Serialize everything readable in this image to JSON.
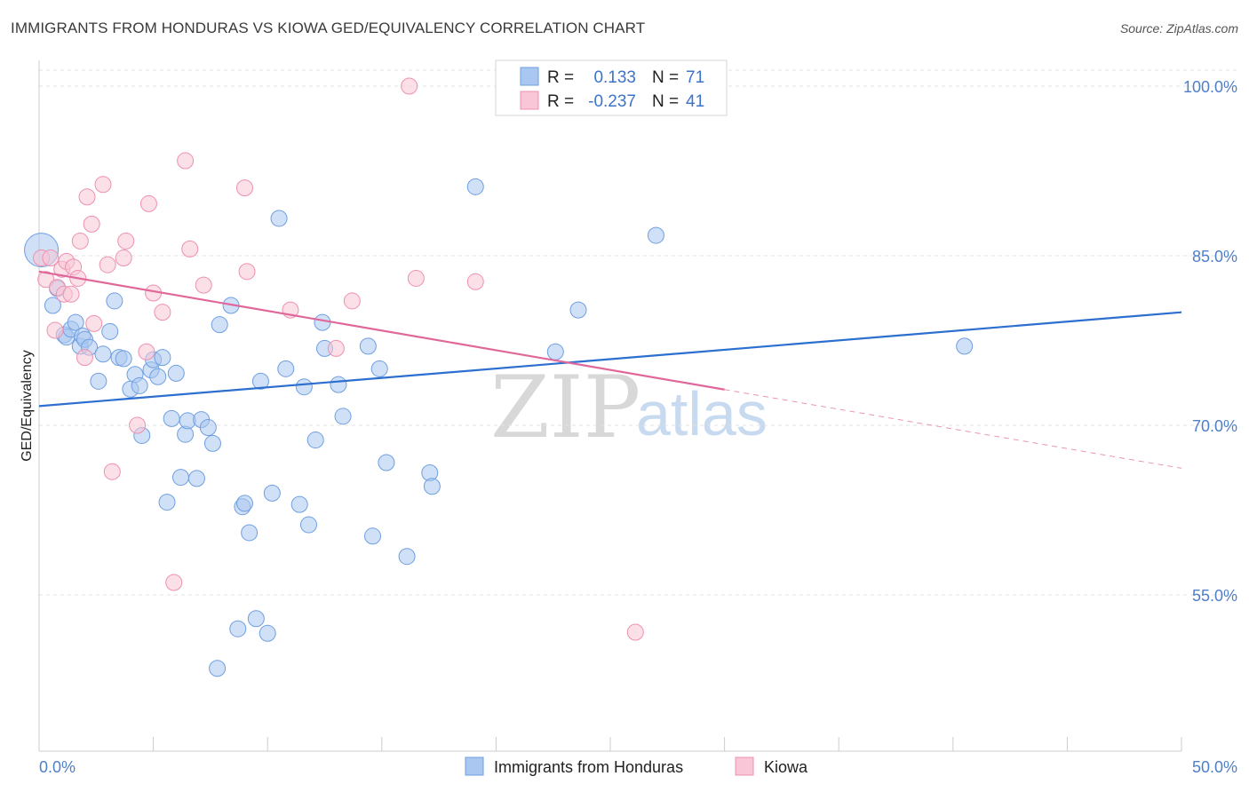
{
  "title": "IMMIGRANTS FROM HONDURAS VS KIOWA GED/EQUIVALENCY CORRELATION CHART",
  "source": "Source: ZipAtlas.com",
  "watermark": {
    "zip": "ZIP",
    "atlas": "atlas"
  },
  "legend_top": {
    "rows": [
      {
        "r_label": "R =",
        "r_value": "0.133",
        "n_label": "N =",
        "n_value": "71"
      },
      {
        "r_label": "R =",
        "r_value": "-0.237",
        "n_label": "N =",
        "n_value": "41"
      }
    ]
  },
  "chart_data": {
    "type": "scatter",
    "xlabel": "",
    "ylabel": "GED/Equivalency",
    "xlim": [
      0,
      50
    ],
    "ylim": [
      40,
      102
    ],
    "x_tick_labels": [
      "0.0%",
      "50.0%"
    ],
    "y_ticks": [
      {
        "value": 100,
        "label": "100.0%"
      },
      {
        "value": 85,
        "label": "85.0%"
      },
      {
        "value": 70,
        "label": "70.0%"
      },
      {
        "value": 55,
        "label": "55.0%"
      }
    ],
    "grid": true,
    "legend_position": "bottom",
    "series": [
      {
        "name": "Immigrants from Honduras",
        "color": "#6f9fe0",
        "fill": "#a9c7f0",
        "trend": {
          "x0": 0,
          "y0": 71.7,
          "x1": 50,
          "y1": 80.0,
          "dashed_from": null
        },
        "points": [
          [
            0.1,
            85.5
          ],
          [
            0.6,
            80.6
          ],
          [
            0.8,
            82.1
          ],
          [
            1.1,
            78.0
          ],
          [
            1.2,
            77.8
          ],
          [
            1.4,
            78.5
          ],
          [
            1.6,
            79.1
          ],
          [
            1.8,
            77.0
          ],
          [
            1.9,
            77.9
          ],
          [
            2.0,
            77.6
          ],
          [
            2.2,
            76.9
          ],
          [
            2.6,
            73.9
          ],
          [
            2.8,
            76.3
          ],
          [
            3.1,
            78.3
          ],
          [
            3.3,
            81.0
          ],
          [
            3.5,
            76.0
          ],
          [
            3.7,
            75.9
          ],
          [
            4.0,
            73.2
          ],
          [
            4.2,
            74.5
          ],
          [
            4.4,
            73.5
          ],
          [
            4.5,
            69.1
          ],
          [
            4.9,
            74.9
          ],
          [
            5.0,
            75.8
          ],
          [
            5.2,
            74.3
          ],
          [
            5.4,
            76.0
          ],
          [
            5.6,
            63.2
          ],
          [
            5.8,
            70.6
          ],
          [
            6.0,
            74.6
          ],
          [
            6.2,
            65.4
          ],
          [
            6.4,
            69.2
          ],
          [
            6.5,
            70.4
          ],
          [
            6.9,
            65.3
          ],
          [
            7.1,
            70.5
          ],
          [
            7.4,
            69.8
          ],
          [
            7.6,
            68.4
          ],
          [
            7.8,
            48.5
          ],
          [
            7.9,
            78.9
          ],
          [
            8.4,
            80.6
          ],
          [
            8.7,
            52.0
          ],
          [
            8.9,
            62.8
          ],
          [
            9.0,
            63.1
          ],
          [
            9.2,
            60.5
          ],
          [
            9.5,
            52.9
          ],
          [
            9.7,
            73.9
          ],
          [
            10.0,
            51.6
          ],
          [
            10.2,
            64.0
          ],
          [
            10.5,
            88.3
          ],
          [
            10.8,
            75.0
          ],
          [
            11.4,
            63.0
          ],
          [
            11.6,
            73.4
          ],
          [
            11.8,
            61.2
          ],
          [
            12.1,
            68.7
          ],
          [
            12.4,
            79.1
          ],
          [
            12.5,
            76.8
          ],
          [
            13.1,
            73.6
          ],
          [
            13.3,
            70.8
          ],
          [
            14.4,
            77.0
          ],
          [
            14.6,
            60.2
          ],
          [
            14.9,
            75.0
          ],
          [
            15.2,
            66.7
          ],
          [
            16.1,
            58.4
          ],
          [
            17.1,
            65.8
          ],
          [
            17.2,
            64.6
          ],
          [
            19.1,
            91.1
          ],
          [
            22.6,
            76.5
          ],
          [
            23.6,
            80.2
          ],
          [
            27.0,
            86.8
          ],
          [
            40.5,
            77.0
          ]
        ]
      },
      {
        "name": "Kiowa",
        "color": "#ee90b0",
        "fill": "#f8c6d6",
        "trend": {
          "x0": 0,
          "y0": 83.6,
          "x1": 50,
          "y1": 66.2,
          "dashed_from": 30
        },
        "points": [
          [
            0.1,
            84.8
          ],
          [
            0.3,
            82.9
          ],
          [
            0.5,
            84.8
          ],
          [
            0.7,
            78.4
          ],
          [
            0.8,
            82.2
          ],
          [
            1.0,
            83.8
          ],
          [
            1.1,
            81.6
          ],
          [
            1.2,
            84.5
          ],
          [
            1.4,
            81.6
          ],
          [
            1.5,
            84.0
          ],
          [
            1.7,
            83.0
          ],
          [
            1.8,
            86.3
          ],
          [
            2.0,
            76.0
          ],
          [
            2.1,
            90.2
          ],
          [
            2.3,
            87.8
          ],
          [
            2.4,
            79.0
          ],
          [
            2.8,
            91.3
          ],
          [
            3.0,
            84.2
          ],
          [
            3.2,
            65.9
          ],
          [
            3.7,
            84.8
          ],
          [
            3.8,
            86.3
          ],
          [
            4.3,
            70.0
          ],
          [
            4.7,
            76.5
          ],
          [
            4.8,
            89.6
          ],
          [
            5.0,
            81.7
          ],
          [
            5.4,
            80.0
          ],
          [
            5.9,
            56.1
          ],
          [
            6.4,
            93.4
          ],
          [
            6.6,
            85.6
          ],
          [
            7.2,
            82.4
          ],
          [
            9.0,
            91.0
          ],
          [
            9.1,
            83.6
          ],
          [
            11.0,
            80.2
          ],
          [
            13.0,
            76.8
          ],
          [
            13.7,
            81.0
          ],
          [
            16.2,
            100.0
          ],
          [
            16.5,
            83.0
          ],
          [
            19.1,
            82.7
          ],
          [
            26.1,
            51.7
          ]
        ]
      }
    ]
  },
  "bottom_legend": [
    {
      "label": "Immigrants from Honduras"
    },
    {
      "label": "Kiowa"
    }
  ]
}
